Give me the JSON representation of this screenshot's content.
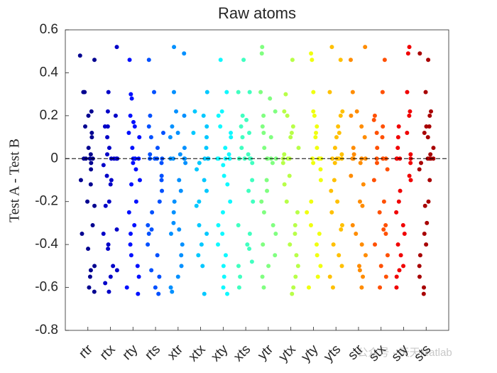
{
  "chart_data": {
    "type": "strip",
    "title": "Raw atoms",
    "y_label": "Test A - Test B",
    "categories": [
      "rtr",
      "rtx",
      "rty",
      "rts",
      "xtr",
      "xtx",
      "xty",
      "xts",
      "ytr",
      "ytx",
      "yty",
      "yts",
      "str",
      "stx",
      "sty",
      "sts"
    ],
    "colors": [
      "#000090",
      "#0000c8",
      "#0010ff",
      "#0050ff",
      "#0090ff",
      "#00c8ff",
      "#10f8ff",
      "#40ffc0",
      "#80ff80",
      "#b8ff48",
      "#f0ff10",
      "#ffc000",
      "#ff8c00",
      "#ff5000",
      "#f00000",
      "#a80000"
    ],
    "values": [
      [
        0.48,
        0.46,
        0.31,
        0.31,
        0.22,
        0.2,
        0.15,
        0.12,
        0.1,
        0.05,
        0.02,
        0,
        0,
        0,
        0,
        -0.02,
        -0.05,
        -0.1,
        -0.12,
        -0.2,
        -0.22,
        -0.31,
        -0.35,
        -0.42,
        -0.5,
        -0.52,
        -0.55,
        -0.6,
        -0.62
      ],
      [
        0.52,
        0.31,
        0.22,
        0.2,
        0.15,
        0.15,
        0.1,
        0.05,
        0.02,
        0,
        0,
        0,
        0,
        -0.03,
        -0.08,
        -0.1,
        -0.12,
        -0.2,
        -0.22,
        -0.33,
        -0.35,
        -0.4,
        -0.42,
        -0.5,
        -0.52,
        -0.55,
        -0.58,
        -0.62
      ],
      [
        0.46,
        0.3,
        0.28,
        0.2,
        0.17,
        0.15,
        0.12,
        0.1,
        0.05,
        0,
        0,
        0,
        0,
        -0.02,
        -0.05,
        -0.1,
        -0.12,
        -0.2,
        -0.25,
        -0.31,
        -0.35,
        -0.4,
        -0.45,
        -0.5,
        -0.55,
        -0.6,
        -0.63
      ],
      [
        0.46,
        0.31,
        0.2,
        0.15,
        0.12,
        0.1,
        0.05,
        0.02,
        0,
        0,
        0,
        0,
        -0.02,
        -0.08,
        -0.1,
        -0.15,
        -0.2,
        -0.25,
        -0.31,
        -0.33,
        -0.35,
        -0.4,
        -0.45,
        -0.52,
        -0.55,
        -0.6,
        -0.63
      ],
      [
        0.52,
        0.49,
        0.31,
        0.22,
        0.2,
        0.15,
        0.12,
        0.1,
        0.05,
        0.02,
        0,
        0,
        0,
        0,
        -0.02,
        -0.1,
        -0.15,
        -0.2,
        -0.25,
        -0.3,
        -0.33,
        -0.35,
        -0.4,
        -0.45,
        -0.5,
        -0.55,
        -0.6,
        -0.62
      ],
      [
        0.31,
        0.22,
        0.2,
        0.15,
        0.12,
        0.1,
        0.05,
        0,
        0,
        0,
        -0.02,
        -0.05,
        -0.1,
        -0.15,
        -0.2,
        -0.22,
        -0.31,
        -0.35,
        -0.4,
        -0.45,
        -0.5,
        -0.63
      ],
      [
        0.46,
        0.31,
        0.22,
        0.2,
        0.15,
        0.12,
        0.1,
        0.05,
        0.02,
        0,
        0,
        0,
        0,
        -0.03,
        -0.08,
        -0.12,
        -0.2,
        -0.25,
        -0.31,
        -0.35,
        -0.4,
        -0.45,
        -0.5,
        -0.55,
        -0.6,
        -0.63
      ],
      [
        0.46,
        0.31,
        0.31,
        0.2,
        0.18,
        0.15,
        0.12,
        0.1,
        0.05,
        0.02,
        0,
        0,
        0,
        0,
        -0.02,
        -0.1,
        -0.15,
        -0.2,
        -0.31,
        -0.35,
        -0.4,
        -0.42,
        -0.48,
        -0.5,
        -0.55,
        -0.6
      ],
      [
        0.52,
        0.49,
        0.31,
        0.28,
        0.22,
        0.2,
        0.15,
        0.12,
        0.1,
        0.05,
        0,
        0,
        0,
        0,
        -0.02,
        -0.1,
        -0.15,
        -0.2,
        -0.25,
        -0.31,
        -0.35,
        -0.4,
        -0.45,
        -0.5,
        -0.55,
        -0.6
      ],
      [
        0.46,
        0.3,
        0.22,
        0.2,
        0.15,
        0.12,
        0.1,
        0.05,
        0.02,
        0,
        0,
        0,
        -0.02,
        -0.08,
        -0.12,
        -0.2,
        -0.25,
        -0.31,
        -0.35,
        -0.4,
        -0.45,
        -0.5,
        -0.55,
        -0.6,
        -0.63
      ],
      [
        0.49,
        0.46,
        0.31,
        0.22,
        0.2,
        0.15,
        0.12,
        0.1,
        0.05,
        0,
        0,
        0,
        0,
        -0.02,
        -0.05,
        -0.1,
        -0.2,
        -0.25,
        -0.31,
        -0.35,
        -0.4,
        -0.45,
        -0.5,
        -0.55,
        -0.6
      ],
      [
        0.52,
        0.46,
        0.31,
        0.22,
        0.2,
        0.15,
        0.12,
        0.1,
        0.05,
        0.02,
        0,
        0,
        0,
        0,
        -0.02,
        -0.1,
        -0.15,
        -0.2,
        -0.25,
        -0.31,
        -0.33,
        -0.4,
        -0.45,
        -0.5,
        -0.55,
        -0.6
      ],
      [
        0.52,
        0.46,
        0.31,
        0.22,
        0.2,
        0.15,
        0.1,
        0.05,
        0.02,
        0,
        0,
        0,
        0,
        -0.02,
        -0.08,
        -0.12,
        -0.2,
        -0.22,
        -0.31,
        -0.35,
        -0.4,
        -0.45,
        -0.5,
        -0.52,
        -0.55,
        -0.6
      ],
      [
        0.46,
        0.31,
        0.2,
        0.18,
        0.15,
        0.12,
        0.1,
        0.05,
        0,
        0,
        0,
        0,
        -0.02,
        -0.05,
        -0.1,
        -0.2,
        -0.25,
        -0.31,
        -0.33,
        -0.35,
        -0.4,
        -0.45,
        -0.5,
        -0.55,
        -0.6
      ],
      [
        0.52,
        0.49,
        0.31,
        0.22,
        0.2,
        0.15,
        0.12,
        0.1,
        0.05,
        0.02,
        0,
        0,
        0,
        0,
        -0.02,
        -0.08,
        -0.1,
        -0.15,
        -0.2,
        -0.25,
        -0.31,
        -0.35,
        -0.4,
        -0.45,
        -0.5,
        -0.52,
        -0.55,
        -0.6
      ],
      [
        0.49,
        0.46,
        0.31,
        0.22,
        0.2,
        0.15,
        0.15,
        0.12,
        0.1,
        0.05,
        0.02,
        0,
        0,
        0,
        0,
        -0.02,
        -0.05,
        -0.1,
        -0.2,
        -0.22,
        -0.3,
        -0.35,
        -0.4,
        -0.45,
        -0.5,
        -0.55,
        -0.6,
        -0.63
      ]
    ],
    "ylim": [
      -0.8,
      0.6
    ],
    "yticks": [
      -0.8,
      -0.6,
      -0.4,
      -0.2,
      0,
      0.2,
      0.4,
      0.6
    ],
    "hline": 0,
    "watermark": "公众号 · 天天Matlab"
  }
}
